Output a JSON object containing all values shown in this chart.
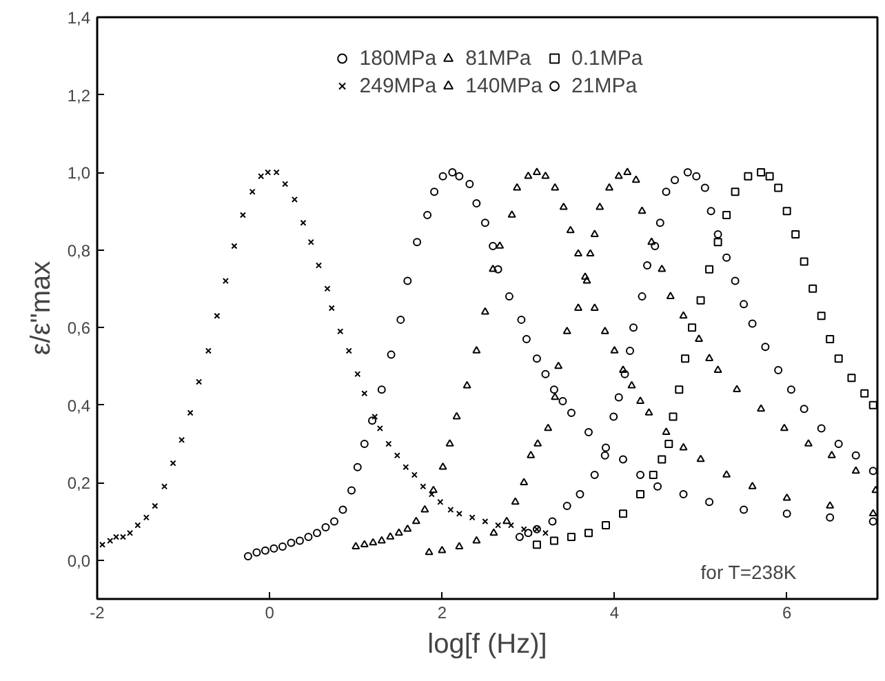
{
  "chart_data": {
    "type": "scatter",
    "xlabel": "log[f (Hz)]",
    "ylabel": "ε/ε\"max",
    "xlim": [
      -2,
      7.05
    ],
    "ylim": [
      -0.1,
      1.4
    ],
    "xticks": [
      -2,
      0,
      2,
      4,
      6
    ],
    "yticks": [
      {
        "value": 0,
        "label": "0,0"
      },
      {
        "value": 0.2,
        "label": "0,2"
      },
      {
        "value": 0.4,
        "label": "0,4"
      },
      {
        "value": 0.6,
        "label": "0,6"
      },
      {
        "value": 0.8,
        "label": "0,8"
      },
      {
        "value": 1.0,
        "label": "1,0"
      },
      {
        "value": 1.2,
        "label": "1,2"
      },
      {
        "value": 1.4,
        "label": "1,4"
      }
    ],
    "grid": false,
    "legend": "top",
    "annotations": [
      "for T=238K"
    ],
    "series": [
      {
        "name": "180MPa",
        "color": "#000000",
        "marker": "circle",
        "x": [
          -0.25,
          -0.15,
          -0.05,
          0.05,
          0.15,
          0.25,
          0.35,
          0.45,
          0.55,
          0.65,
          0.75,
          0.85,
          0.95,
          1.02,
          1.1,
          1.19,
          1.3,
          1.41,
          1.52,
          1.6,
          1.71,
          1.83,
          1.91,
          2.01,
          2.12,
          2.2,
          2.32,
          2.4,
          2.5,
          2.59,
          2.65,
          2.78,
          2.92,
          2.98,
          3.1,
          3.2,
          3.3,
          3.4,
          3.5,
          3.7,
          3.9,
          4.1,
          4.3,
          4.5,
          4.8,
          5.1,
          5.5,
          6.0,
          6.5,
          7.0
        ],
        "values": [
          0.01,
          0.02,
          0.025,
          0.03,
          0.035,
          0.045,
          0.05,
          0.06,
          0.07,
          0.085,
          0.1,
          0.13,
          0.18,
          0.24,
          0.3,
          0.36,
          0.44,
          0.53,
          0.62,
          0.72,
          0.82,
          0.89,
          0.95,
          0.99,
          1.0,
          0.99,
          0.97,
          0.92,
          0.87,
          0.81,
          0.75,
          0.68,
          0.62,
          0.57,
          0.52,
          0.48,
          0.44,
          0.41,
          0.38,
          0.33,
          0.29,
          0.26,
          0.22,
          0.19,
          0.17,
          0.15,
          0.13,
          0.12,
          0.11,
          0.1
        ]
      },
      {
        "name": "249MPa",
        "color": "#000000",
        "marker": "cross",
        "x": [
          -1.94,
          -1.85,
          -1.78,
          -1.7,
          -1.62,
          -1.53,
          -1.43,
          -1.33,
          -1.22,
          -1.12,
          -1.02,
          -0.92,
          -0.82,
          -0.71,
          -0.61,
          -0.51,
          -0.41,
          -0.31,
          -0.2,
          -0.1,
          -0.02,
          0.08,
          0.18,
          0.29,
          0.39,
          0.48,
          0.57,
          0.67,
          0.72,
          0.82,
          0.92,
          1.02,
          1.1,
          1.22,
          1.28,
          1.38,
          1.48,
          1.58,
          1.68,
          1.78,
          1.88,
          1.98,
          2.1,
          2.2,
          2.35,
          2.5,
          2.65,
          2.8,
          2.95,
          3.1,
          3.2
        ],
        "values": [
          0.04,
          0.05,
          0.06,
          0.06,
          0.07,
          0.09,
          0.11,
          0.14,
          0.19,
          0.25,
          0.31,
          0.38,
          0.46,
          0.54,
          0.63,
          0.72,
          0.81,
          0.89,
          0.95,
          0.99,
          1.0,
          1.0,
          0.97,
          0.93,
          0.87,
          0.82,
          0.76,
          0.7,
          0.65,
          0.59,
          0.54,
          0.48,
          0.43,
          0.37,
          0.34,
          0.3,
          0.27,
          0.24,
          0.22,
          0.19,
          0.17,
          0.15,
          0.13,
          0.12,
          0.11,
          0.1,
          0.09,
          0.09,
          0.08,
          0.08,
          0.07
        ]
      },
      {
        "name": "81MPa",
        "color": "#000000",
        "marker": "triangle",
        "x": [
          1.85,
          2.0,
          2.2,
          2.4,
          2.6,
          2.75,
          2.85,
          2.95,
          3.03,
          3.11,
          3.23,
          3.31,
          3.35,
          3.45,
          3.58,
          3.66,
          3.72,
          3.77,
          3.83,
          3.94,
          4.05,
          4.15,
          4.25,
          4.32,
          4.43,
          4.55,
          4.65,
          4.8,
          4.98,
          5.1,
          5.2,
          5.42,
          5.7,
          5.97,
          6.25,
          6.52,
          6.8,
          7.03
        ],
        "values": [
          0.02,
          0.025,
          0.035,
          0.05,
          0.07,
          0.1,
          0.15,
          0.2,
          0.27,
          0.3,
          0.34,
          0.42,
          0.5,
          0.59,
          0.65,
          0.73,
          0.79,
          0.84,
          0.91,
          0.96,
          0.99,
          1.0,
          0.98,
          0.9,
          0.82,
          0.75,
          0.68,
          0.63,
          0.57,
          0.52,
          0.49,
          0.44,
          0.39,
          0.34,
          0.3,
          0.27,
          0.23,
          0.18
        ]
      },
      {
        "name": "140MPa",
        "color": "#000000",
        "marker": "triangle",
        "x": [
          1.0,
          1.1,
          1.2,
          1.3,
          1.4,
          1.5,
          1.6,
          1.7,
          1.8,
          1.9,
          2.01,
          2.09,
          2.17,
          2.29,
          2.4,
          2.5,
          2.59,
          2.67,
          2.81,
          2.87,
          3.0,
          3.1,
          3.2,
          3.31,
          3.41,
          3.49,
          3.58,
          3.68,
          3.77,
          3.89,
          4.0,
          4.1,
          4.2,
          4.3,
          4.4,
          4.6,
          4.8,
          5.0,
          5.3,
          5.6,
          6.0,
          6.5,
          7.0
        ],
        "values": [
          0.035,
          0.04,
          0.045,
          0.05,
          0.06,
          0.07,
          0.08,
          0.1,
          0.13,
          0.18,
          0.24,
          0.3,
          0.37,
          0.45,
          0.54,
          0.64,
          0.75,
          0.81,
          0.89,
          0.96,
          0.99,
          1.0,
          0.99,
          0.96,
          0.91,
          0.85,
          0.79,
          0.72,
          0.65,
          0.59,
          0.54,
          0.49,
          0.45,
          0.41,
          0.38,
          0.33,
          0.29,
          0.26,
          0.22,
          0.19,
          0.16,
          0.14,
          0.12
        ]
      },
      {
        "name": "0.1MPa",
        "color": "#000000",
        "marker": "square",
        "x": [
          3.1,
          3.3,
          3.5,
          3.7,
          3.9,
          4.1,
          4.3,
          4.45,
          4.55,
          4.63,
          4.68,
          4.75,
          4.82,
          4.9,
          5.0,
          5.1,
          5.2,
          5.3,
          5.4,
          5.55,
          5.7,
          5.8,
          5.9,
          6.0,
          6.1,
          6.2,
          6.3,
          6.4,
          6.5,
          6.6,
          6.75,
          6.9,
          7.0
        ],
        "values": [
          0.04,
          0.05,
          0.06,
          0.07,
          0.09,
          0.12,
          0.17,
          0.22,
          0.26,
          0.3,
          0.37,
          0.44,
          0.52,
          0.6,
          0.67,
          0.75,
          0.82,
          0.89,
          0.95,
          0.99,
          1.0,
          0.99,
          0.96,
          0.9,
          0.84,
          0.77,
          0.7,
          0.63,
          0.57,
          0.52,
          0.47,
          0.43,
          0.4
        ]
      },
      {
        "name": "21MPa",
        "color": "#000000",
        "marker": "circle",
        "x": [
          2.9,
          3.0,
          3.1,
          3.28,
          3.45,
          3.6,
          3.77,
          3.89,
          3.99,
          4.05,
          4.12,
          4.18,
          4.22,
          4.32,
          4.38,
          4.47,
          4.53,
          4.6,
          4.7,
          4.85,
          4.95,
          5.05,
          5.12,
          5.2,
          5.3,
          5.4,
          5.5,
          5.6,
          5.75,
          5.9,
          6.05,
          6.2,
          6.4,
          6.6,
          6.8,
          7.0
        ],
        "values": [
          0.06,
          0.07,
          0.08,
          0.1,
          0.14,
          0.17,
          0.22,
          0.27,
          0.37,
          0.42,
          0.48,
          0.54,
          0.6,
          0.68,
          0.76,
          0.81,
          0.87,
          0.95,
          0.98,
          1.0,
          0.99,
          0.96,
          0.9,
          0.84,
          0.78,
          0.72,
          0.66,
          0.61,
          0.55,
          0.49,
          0.44,
          0.39,
          0.34,
          0.3,
          0.27,
          0.23
        ]
      }
    ]
  }
}
